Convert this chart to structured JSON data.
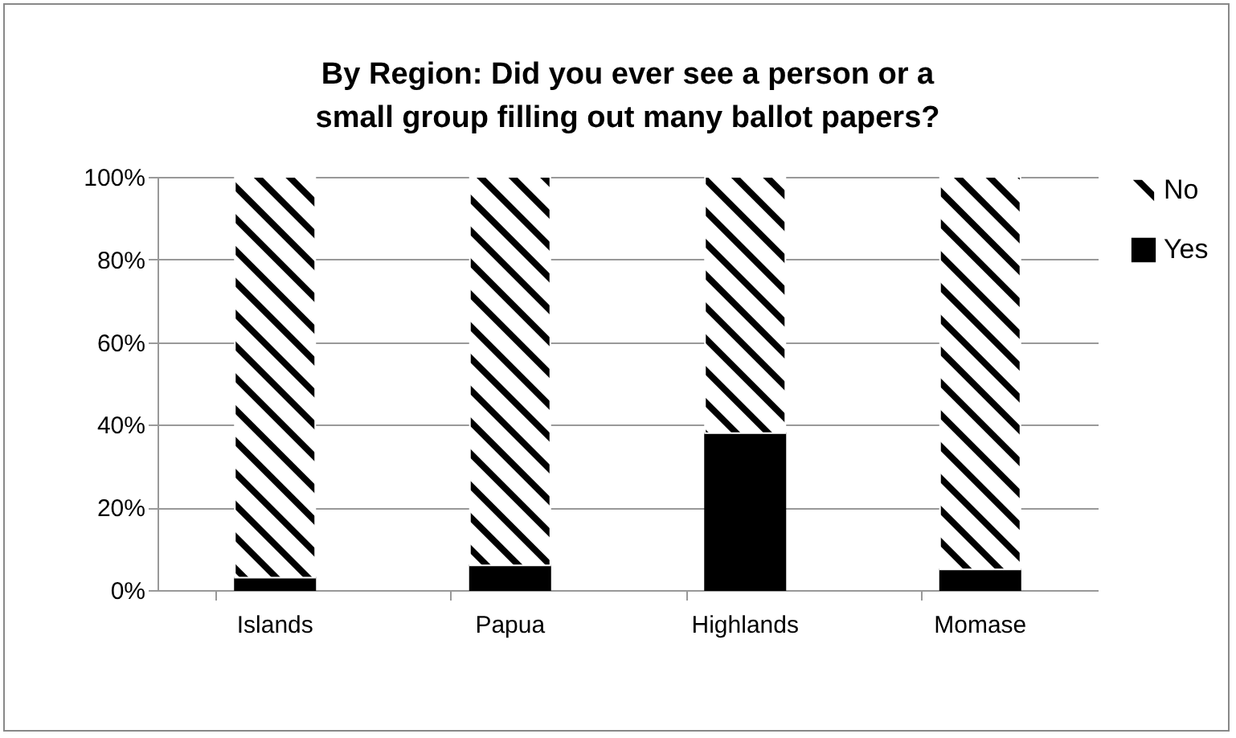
{
  "chart_data": {
    "type": "bar",
    "title": "By Region: Did you ever see a person or a small group filling out many ballot papers?",
    "categories": [
      "Islands",
      "Papua",
      "Highlands",
      "Momase"
    ],
    "stacked": true,
    "series": [
      {
        "name": "Yes",
        "color": "#000000",
        "values": [
          3,
          6,
          38,
          5
        ]
      },
      {
        "name": "No",
        "color": "#ffffff",
        "values": [
          97,
          94,
          62,
          95
        ]
      }
    ],
    "ylim": [
      0,
      100
    ],
    "yticks": [
      {
        "value": 0,
        "label": "0%"
      },
      {
        "value": 20,
        "label": "20%"
      },
      {
        "value": 40,
        "label": "40%"
      },
      {
        "value": 60,
        "label": "60%"
      },
      {
        "value": 80,
        "label": "80%"
      },
      {
        "value": 100,
        "label": "100%"
      }
    ],
    "grid": "y",
    "legend": "right"
  }
}
